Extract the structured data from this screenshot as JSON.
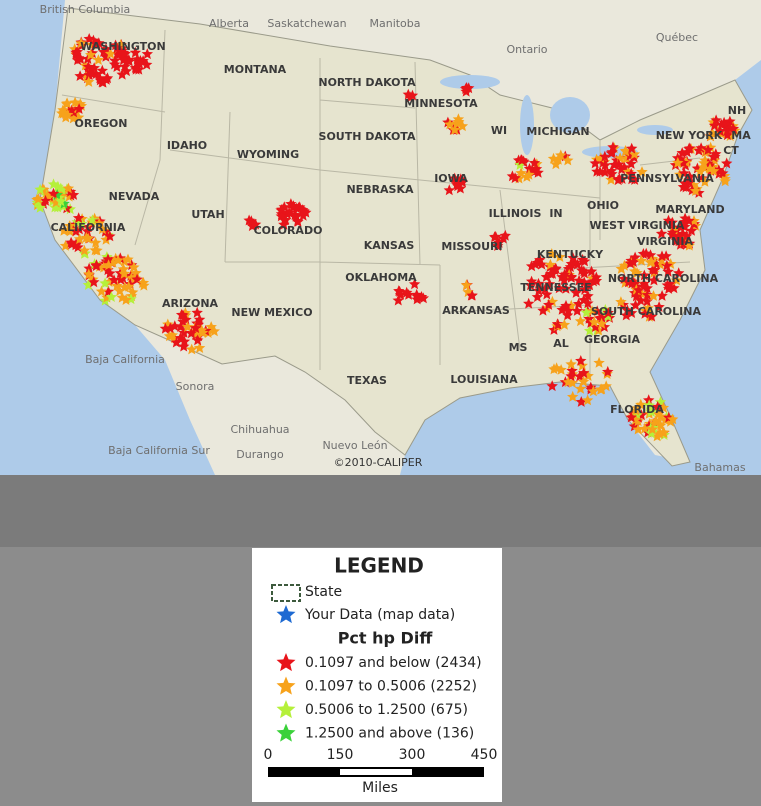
{
  "map": {
    "regions": [
      "British Columbia",
      "Alberta",
      "Saskatchewan",
      "Manitoba",
      "Ontario",
      "Québec",
      "Baja California",
      "Sonora",
      "Chihuahua",
      "Baja California Sur",
      "Durango",
      "Nuevo León",
      "Bahamas"
    ],
    "states": [
      "WASHINGTON",
      "MONTANA",
      "NORTH DAKOTA",
      "MINNESOTA",
      "OREGON",
      "IDAHO",
      "WYOMING",
      "SOUTH DAKOTA",
      "WI",
      "MICHIGAN",
      "NH",
      "NEW YORK",
      "MA",
      "CT",
      "NEVADA",
      "UTAH",
      "COLORADO",
      "NEBRASKA",
      "IOWA",
      "ILLINOIS",
      "IN",
      "OHIO",
      "PENNSYLVANIA",
      "MARYLAND",
      "WEST VIRGINIA",
      "VIRGINIA",
      "CALIFORNIA",
      "KANSAS",
      "MISSOURI",
      "KENTUCKY",
      "ARIZONA",
      "NEW MEXICO",
      "OKLAHOMA",
      "TENNESSEE",
      "NORTH CAROLINA",
      "ARKANSAS",
      "SOUTH CAROLINA",
      "MS",
      "AL",
      "GEORGIA",
      "TEXAS",
      "LOUISIANA",
      "FLORIDA"
    ],
    "copyright": "©2010-CALIPER"
  },
  "legend": {
    "title": "LEGEND",
    "items": [
      {
        "label": "State"
      },
      {
        "label": "Your Data (map data)",
        "color": "#1e6ad2"
      }
    ],
    "section": "Pct hp Diff",
    "classes": [
      {
        "label": "0.1097 and below (2434)",
        "color": "#e8141a"
      },
      {
        "label": "0.1097 to 0.5006 (2252)",
        "color": "#f7a21b"
      },
      {
        "label": "0.5006 to 1.2500 (675)",
        "color": "#b5f03a"
      },
      {
        "label": "1.2500 and above (136)",
        "color": "#3ad13a"
      }
    ],
    "scale": {
      "ticks": [
        "0",
        "150",
        "300",
        "450"
      ],
      "unit": "Miles"
    }
  }
}
